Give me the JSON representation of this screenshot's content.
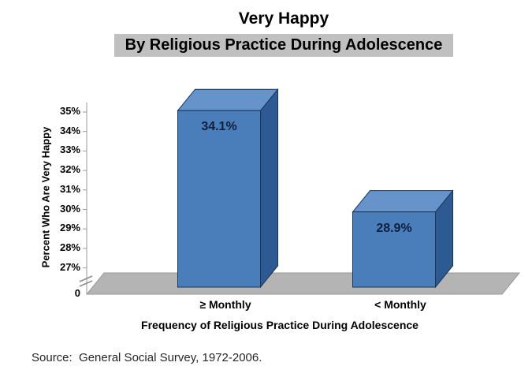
{
  "source": "Source:  General Social Survey, 1972-2006.",
  "chart_data": {
    "type": "bar",
    "variant": "3d-column",
    "title": "Very Happy",
    "subtitle": "By Religious Practice During Adolescence",
    "xlabel": "Frequency of Religious Practice During Adolescence",
    "ylabel": "Percent Who Are Very Happy",
    "categories": [
      "≥ Monthly",
      "< Monthly"
    ],
    "values": [
      34.1,
      28.9
    ],
    "data_labels": [
      "34.1%",
      "28.9%"
    ],
    "ytick_labels": [
      "35%",
      "34%",
      "33%",
      "32%",
      "31%",
      "30%",
      "29%",
      "28%",
      "27%"
    ],
    "ytick_values": [
      35,
      34,
      33,
      32,
      31,
      30,
      29,
      28,
      27
    ],
    "baseline_label": "0",
    "axis_break": true,
    "ylim": [
      27,
      35
    ],
    "grid": false,
    "legend": false,
    "colors": {
      "bar_front": "#4a7ebb",
      "bar_side": "#2e5a94",
      "bar_top": "#6693ca",
      "bar_outline": "#16365c",
      "floor": "#b4b4b4",
      "floor_edge": "#9a9a9a",
      "axis": "#9a9a9a",
      "break_mark": "#8c8c8c",
      "subtitle_bg": "#c0c0c0",
      "data_label_text": "#0f1f3d"
    }
  }
}
